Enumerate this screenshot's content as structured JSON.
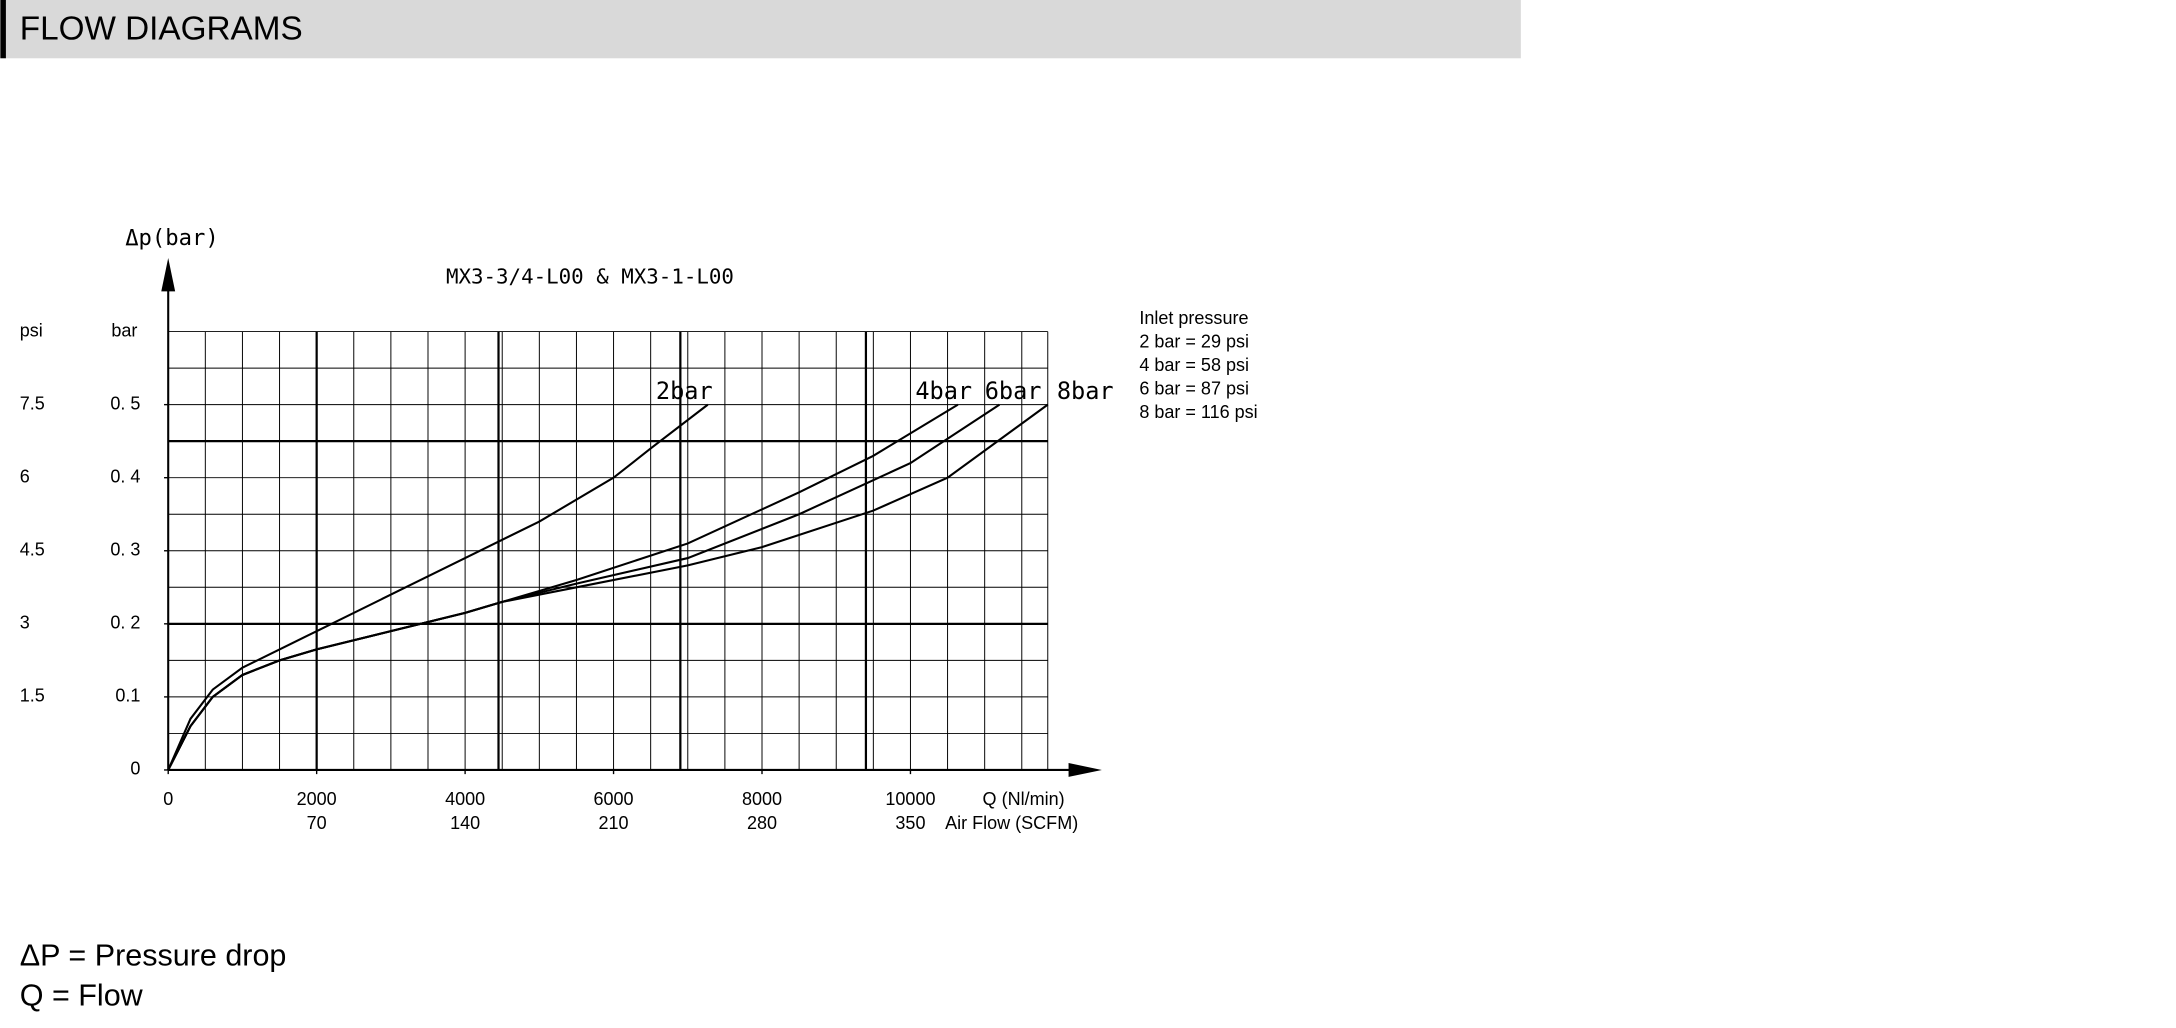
{
  "header": {
    "title": "FLOW DIAGRAMS"
  },
  "notes": [
    "ΔP = Pressure drop",
    "Q = Flow"
  ],
  "chart_data": {
    "type": "line",
    "title": "MX3-3/4-L00 & MX3-1-L00",
    "y_label": "Δp(bar)",
    "y_unit_header": "bar",
    "y2_unit_header": "psi",
    "x_label": "Q (Nl/min)",
    "x2_label": "Air Flow (SCFM)",
    "legend_title": "Inlet pressure",
    "legend_lines": [
      "2 bar = 29 psi",
      "4 bar = 58 psi",
      "6 bar = 87 psi",
      "8 bar = 116 psi"
    ],
    "xlim": [
      0,
      11850
    ],
    "ylim": [
      0,
      0.6
    ],
    "xticks": [
      0,
      2000,
      4000,
      6000,
      8000,
      10000
    ],
    "x2ticks": [
      {
        "value": 2000,
        "label": "70"
      },
      {
        "value": 4000,
        "label": "140"
      },
      {
        "value": 6000,
        "label": "210"
      },
      {
        "value": 8000,
        "label": "280"
      },
      {
        "value": 10000,
        "label": "350"
      }
    ],
    "yticks": [
      0,
      {
        "value": 0.1,
        "label": "0.1"
      },
      {
        "value": 0.2,
        "label": "0. 2"
      },
      {
        "value": 0.3,
        "label": "0. 3"
      },
      {
        "value": 0.4,
        "label": "0. 4"
      },
      {
        "value": 0.5,
        "label": "0. 5"
      }
    ],
    "y2ticks": [
      {
        "value": 0.1,
        "label": "1.5"
      },
      {
        "value": 0.2,
        "label": "3"
      },
      {
        "value": 0.3,
        "label": "4.5"
      },
      {
        "value": 0.4,
        "label": "6"
      },
      {
        "value": 0.5,
        "label": "7.5"
      }
    ],
    "xgrid": [
      0,
      500,
      1000,
      1500,
      2000,
      2500,
      3000,
      3500,
      4000,
      4500,
      5000,
      5500,
      6000,
      6500,
      7000,
      7500,
      8000,
      8500,
      9000,
      9500,
      10000,
      10500,
      11000,
      11500,
      11850
    ],
    "ygrid": [
      0,
      0.05,
      0.1,
      0.15,
      0.2,
      0.25,
      0.3,
      0.35,
      0.4,
      0.45,
      0.5,
      0.55,
      0.6
    ],
    "xgrid_major": [
      2000,
      4450,
      6900,
      9400
    ],
    "ygrid_major": [
      0.2,
      0.45
    ],
    "series": [
      {
        "name": "2bar",
        "color": "#000000",
        "x": [
          0,
          300,
          600,
          1000,
          1500,
          2000,
          3000,
          4000,
          5000,
          6000,
          6500,
          7270
        ],
        "values": [
          0,
          0.07,
          0.11,
          0.14,
          0.165,
          0.19,
          0.24,
          0.29,
          0.34,
          0.4,
          0.44,
          0.5
        ]
      },
      {
        "name": "4bar",
        "color": "#000000",
        "x": [
          0,
          300,
          600,
          1000,
          1500,
          2000,
          3000,
          4000,
          4500,
          5500,
          7000,
          8500,
          9500,
          10640
        ],
        "values": [
          0,
          0.06,
          0.1,
          0.13,
          0.15,
          0.165,
          0.19,
          0.215,
          0.23,
          0.26,
          0.31,
          0.38,
          0.43,
          0.5
        ]
      },
      {
        "name": "6bar",
        "color": "#000000",
        "x": [
          0,
          300,
          600,
          1000,
          1500,
          2000,
          3000,
          4000,
          4500,
          5500,
          7000,
          8500,
          10000,
          11200
        ],
        "values": [
          0,
          0.06,
          0.1,
          0.13,
          0.15,
          0.165,
          0.19,
          0.215,
          0.23,
          0.255,
          0.29,
          0.35,
          0.42,
          0.5
        ]
      },
      {
        "name": "8bar",
        "color": "#000000",
        "x": [
          0,
          300,
          600,
          1000,
          1500,
          2000,
          3000,
          4000,
          4500,
          5500,
          7000,
          8000,
          9500,
          10500,
          11850
        ],
        "values": [
          0,
          0.06,
          0.1,
          0.13,
          0.15,
          0.165,
          0.19,
          0.215,
          0.23,
          0.25,
          0.28,
          0.305,
          0.355,
          0.4,
          0.5
        ]
      }
    ]
  }
}
